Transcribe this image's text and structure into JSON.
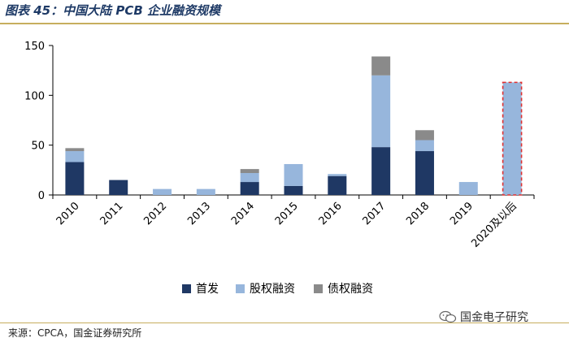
{
  "header": {
    "title": "图表 45：中国大陆 PCB 企业融资规模"
  },
  "footer": {
    "source": "来源：CPCA，国金证券研究所",
    "watermark": "国金电子研究",
    "watermark_icon": "wechat-icon"
  },
  "colors": {
    "ipo": "#1f3864",
    "equity": "#97b6dc",
    "debt": "#8a8a8a",
    "projected_border": "#e03131",
    "accent_rule": "#c7ae5e"
  },
  "chart_data": {
    "type": "bar",
    "stacked": true,
    "title": "",
    "xlabel": "",
    "ylabel": "",
    "ylim": [
      0,
      150
    ],
    "yticks": [
      0,
      50,
      100,
      150
    ],
    "grid": false,
    "legend": "bottom",
    "categories": [
      "2010",
      "2011",
      "2012",
      "2013",
      "2014",
      "2015",
      "2016",
      "2017",
      "2018",
      "2019",
      "2020及以后"
    ],
    "series": [
      {
        "name": "首发",
        "color": "#1f3864",
        "values": [
          33,
          15,
          0,
          0,
          13,
          9,
          19,
          48,
          44,
          0,
          0
        ]
      },
      {
        "name": "股权融资",
        "color": "#97b6dc",
        "values": [
          11,
          0,
          6,
          6,
          9,
          22,
          2,
          72,
          11,
          13,
          113
        ]
      },
      {
        "name": "债权融资",
        "color": "#8a8a8a",
        "values": [
          3,
          0,
          0,
          0,
          4,
          0,
          0,
          19,
          10,
          0,
          0
        ]
      }
    ],
    "highlight_category": "2020及以后",
    "highlight_style": "dashed-red-border"
  }
}
